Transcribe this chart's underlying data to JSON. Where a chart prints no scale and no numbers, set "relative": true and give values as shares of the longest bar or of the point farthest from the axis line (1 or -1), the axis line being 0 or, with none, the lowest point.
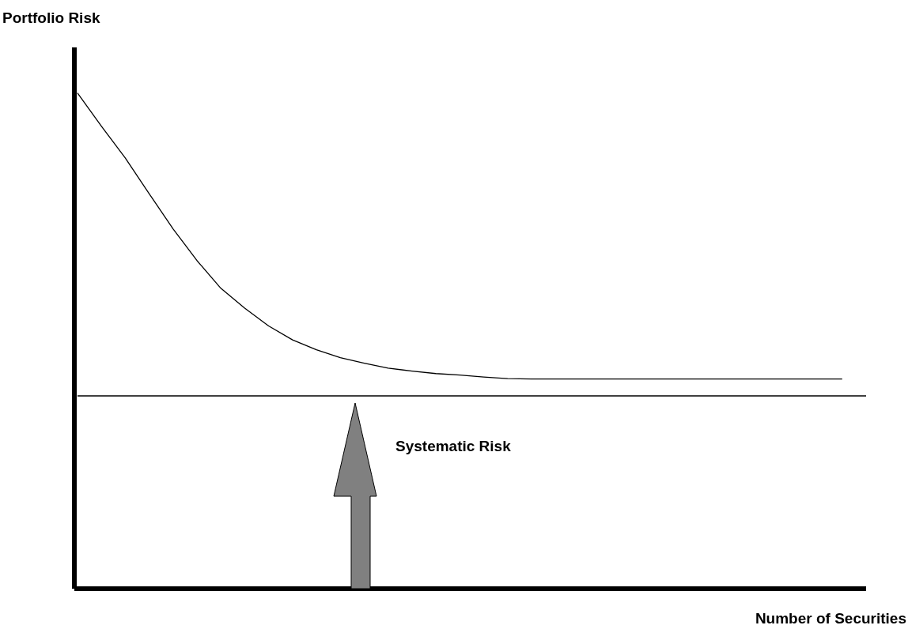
{
  "chart_data": {
    "type": "line",
    "relative": true,
    "ylabel": "Portfolio Risk",
    "xlabel": "Number of Securities",
    "categories": [
      null,
      null,
      null,
      null,
      null,
      null,
      null,
      null,
      null,
      null,
      null,
      null,
      null,
      null,
      null,
      null,
      null,
      null,
      null,
      null,
      null,
      null,
      null,
      null,
      null,
      null,
      null,
      null,
      null,
      null,
      null,
      null,
      null,
      null
    ],
    "series": [
      {
        "color": "#000000",
        "values": [
          1,
          0.933,
          0.869,
          0.797,
          0.726,
          0.662,
          0.606,
          0.566,
          0.53,
          0.502,
          0.482,
          0.466,
          0.455,
          0.445,
          0.439,
          0.434,
          0.431,
          0.427,
          0.424,
          0.423,
          0.423,
          0.423,
          0.423,
          0.423,
          0.423,
          0.423,
          0.423,
          0.423,
          0.423,
          0.423,
          0.423,
          0.423,
          0.423,
          null
        ]
      },
      {
        "color": "#000000",
        "values": [
          0.389,
          0.389,
          0.389,
          0.389,
          0.389,
          0.389,
          0.389,
          0.389,
          0.389,
          0.389,
          0.389,
          0.389,
          0.389,
          0.389,
          0.389,
          0.389,
          0.389,
          0.389,
          0.389,
          0.389,
          0.389,
          0.389,
          0.389,
          0.389,
          0.389,
          0.389,
          0.389,
          0.389,
          0.389,
          0.389,
          0.389,
          0.389,
          0.389,
          0.389
        ]
      }
    ],
    "annotations": [
      "Systematic Risk"
    ],
    "marker": "none",
    "line_style": "solid",
    "grid": false,
    "legend": false
  }
}
